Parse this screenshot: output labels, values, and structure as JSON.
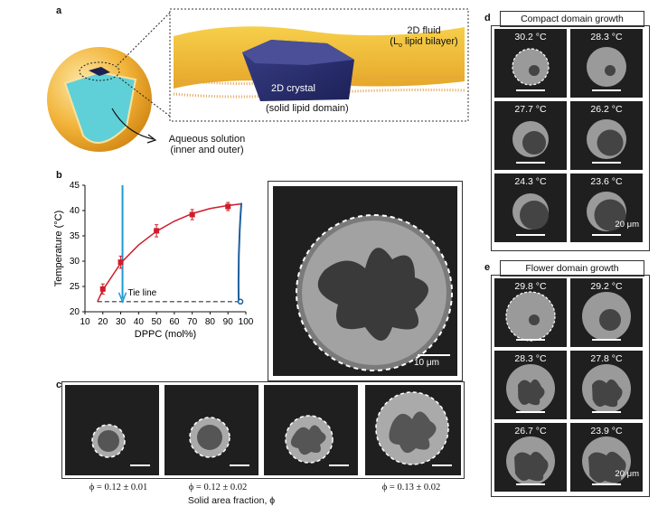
{
  "panels": {
    "a": "a",
    "b": "b",
    "c": "c",
    "d": "d",
    "e": "e"
  },
  "panel_a": {
    "fluid_label_1": "2D fluid",
    "fluid_label_2": "(L",
    "fluid_label_sub": "o",
    "fluid_label_3": " lipid bilayer)",
    "crystal_label": "2D crystal",
    "solid_label": "(solid lipid domain)",
    "aqueous_1": "Aqueous solution",
    "aqueous_2": "(inner and outer)"
  },
  "panel_b": {
    "scale_bar": "10 μm"
  },
  "chart_data": {
    "type": "scatter",
    "xlabel": "DPPC (mol%)",
    "ylabel": "Temperature (°C)",
    "xlim": [
      10,
      100
    ],
    "ylim": [
      20,
      45
    ],
    "x_ticks": [
      "10",
      "20",
      "30",
      "40",
      "50",
      "60",
      "70",
      "80",
      "90",
      "100"
    ],
    "y_ticks": [
      "20",
      "25",
      "30",
      "35",
      "40",
      "45"
    ],
    "series": [
      {
        "values": [
          [
            20,
            24.5
          ],
          [
            30,
            29.8
          ],
          [
            50,
            36.0
          ],
          [
            70,
            39.2
          ],
          [
            90,
            40.8
          ]
        ],
        "errors": [
          1.0,
          1.2,
          1.2,
          1.0,
          0.8
        ]
      }
    ],
    "tie_line_temperature": 22,
    "tie_line_label": "Tie line",
    "tie_line_range": [
      17,
      97
    ],
    "arrow_x": 31,
    "right_boundary_x": 97
  },
  "panel_c": {
    "captions": [
      "ϕ = 0.12 ± 0.01",
      "ϕ = 0.12 ± 0.02",
      "ϕ = 0.13 ± 0.02"
    ],
    "axis_caption": "Solid area fraction, ϕ"
  },
  "panel_d": {
    "title": "Compact domain growth",
    "temps": [
      "30.2 °C",
      "28.3 °C",
      "27.7 °C",
      "26.2 °C",
      "24.3 °C",
      "23.6 °C"
    ],
    "scale_bar": "20 μm"
  },
  "panel_e": {
    "title": "Flower domain growth",
    "temps": [
      "29.8 °C",
      "29.2 °C",
      "28.3 °C",
      "27.8 °C",
      "26.7 °C",
      "23.9 °C"
    ],
    "scale_bar": "20 μm"
  },
  "colors": {
    "fluid": "#e8b838",
    "crystal": "#2a2f6e",
    "aqueous": "#5fd0d8",
    "data_red": "#d01c2a",
    "arrow_blue": "#1e9ad6",
    "boundary_blue": "#1d5f9e"
  }
}
